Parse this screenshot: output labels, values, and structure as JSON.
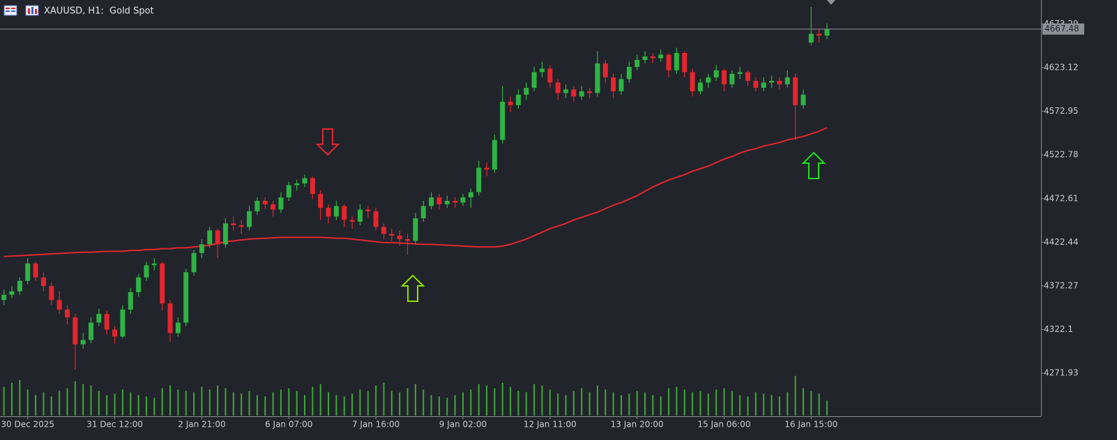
{
  "chart_data": {
    "type": "candlestick",
    "title": "XAUUSD, H1:  Gold Spot",
    "ylim": [
      4222.3,
      4700.9
    ],
    "yticks": [
      4673.29,
      4623.12,
      4572.95,
      4522.78,
      4472.61,
      4422.44,
      4372.27,
      4322.1,
      4271.93
    ],
    "last_price": 4667.48,
    "last_price_color": "#8c9099",
    "up_color": "#2fb344",
    "down_color": "#e3262f",
    "volume_color": "#3fa83a",
    "categories": [
      null,
      null,
      null,
      "30 Dec 2025",
      null,
      null,
      null,
      null,
      null,
      null,
      null,
      null,
      null,
      null,
      "31 Dec 12:00",
      null,
      null,
      null,
      null,
      null,
      null,
      null,
      null,
      null,
      null,
      "2 Jan 21:00",
      null,
      null,
      null,
      null,
      null,
      null,
      null,
      null,
      null,
      null,
      "6 Jan 07:00",
      null,
      null,
      null,
      null,
      null,
      null,
      null,
      null,
      null,
      null,
      "7 Jan 16:00",
      null,
      null,
      null,
      null,
      null,
      null,
      null,
      null,
      null,
      null,
      "9 Jan 02:00",
      null,
      null,
      null,
      null,
      null,
      null,
      null,
      null,
      null,
      null,
      "12 Jan 11:00",
      null,
      null,
      null,
      null,
      null,
      null,
      null,
      null,
      null,
      null,
      "13 Jan 20:00",
      null,
      null,
      null,
      null,
      null,
      null,
      null,
      null,
      null,
      null,
      "15 Jan 06:00",
      null,
      null,
      null,
      null,
      null,
      null,
      null,
      null,
      null,
      null,
      "16 Jan 15:00",
      null,
      null
    ],
    "ohlc": [
      [
        4356,
        4368,
        4350,
        4362
      ],
      [
        4362,
        4372,
        4358,
        4366
      ],
      [
        4366,
        4382,
        4362,
        4378
      ],
      [
        4378,
        4404,
        4374,
        4398
      ],
      [
        4398,
        4400,
        4378,
        4382
      ],
      [
        4382,
        4388,
        4366,
        4372
      ],
      [
        4372,
        4376,
        4350,
        4356
      ],
      [
        4356,
        4366,
        4340,
        4345
      ],
      [
        4345,
        4350,
        4328,
        4336
      ],
      [
        4336,
        4340,
        4276,
        4305
      ],
      [
        4305,
        4318,
        4300,
        4310
      ],
      [
        4310,
        4336,
        4306,
        4330
      ],
      [
        4330,
        4346,
        4326,
        4340
      ],
      [
        4340,
        4344,
        4316,
        4322
      ],
      [
        4322,
        4326,
        4306,
        4314
      ],
      [
        4314,
        4350,
        4312,
        4345
      ],
      [
        4345,
        4370,
        4340,
        4365
      ],
      [
        4365,
        4386,
        4360,
        4382
      ],
      [
        4382,
        4400,
        4378,
        4396
      ],
      [
        4396,
        4404,
        4390,
        4398
      ],
      [
        4398,
        4400,
        4344,
        4352
      ],
      [
        4352,
        4356,
        4308,
        4318
      ],
      [
        4318,
        4336,
        4314,
        4330
      ],
      [
        4330,
        4392,
        4326,
        4388
      ],
      [
        4388,
        4414,
        4384,
        4410
      ],
      [
        4410,
        4426,
        4404,
        4420
      ],
      [
        4420,
        4440,
        4416,
        4436
      ],
      [
        4436,
        4438,
        4404,
        4420
      ],
      [
        4420,
        4450,
        4416,
        4444
      ],
      [
        4444,
        4452,
        4436,
        4442
      ],
      [
        4442,
        4448,
        4432,
        4440
      ],
      [
        4440,
        4464,
        4436,
        4458
      ],
      [
        4458,
        4474,
        4454,
        4470
      ],
      [
        4470,
        4474,
        4460,
        4466
      ],
      [
        4466,
        4470,
        4452,
        4460
      ],
      [
        4460,
        4480,
        4456,
        4474
      ],
      [
        4474,
        4492,
        4470,
        4488
      ],
      [
        4488,
        4494,
        4482,
        4490
      ],
      [
        4490,
        4500,
        4486,
        4496
      ],
      [
        4496,
        4498,
        4472,
        4478
      ],
      [
        4478,
        4482,
        4448,
        4462
      ],
      [
        4462,
        4466,
        4444,
        4452
      ],
      [
        4452,
        4470,
        4448,
        4464
      ],
      [
        4464,
        4466,
        4440,
        4448
      ],
      [
        4448,
        4452,
        4438,
        4446
      ],
      [
        4446,
        4466,
        4442,
        4460
      ],
      [
        4460,
        4464,
        4450,
        4458
      ],
      [
        4458,
        4462,
        4436,
        4440
      ],
      [
        4440,
        4444,
        4426,
        4432
      ],
      [
        4432,
        4438,
        4424,
        4430
      ],
      [
        4430,
        4436,
        4418,
        4426
      ],
      [
        4426,
        4432,
        4408,
        4424
      ],
      [
        4424,
        4456,
        4420,
        4450
      ],
      [
        4450,
        4470,
        4446,
        4464
      ],
      [
        4464,
        4480,
        4460,
        4474
      ],
      [
        4474,
        4478,
        4460,
        4466
      ],
      [
        4466,
        4476,
        4462,
        4470
      ],
      [
        4470,
        4474,
        4462,
        4468
      ],
      [
        4468,
        4478,
        4464,
        4474
      ],
      [
        4474,
        4484,
        4462,
        4480
      ],
      [
        4480,
        4516,
        4476,
        4508
      ],
      [
        4508,
        4514,
        4498,
        4506
      ],
      [
        4506,
        4546,
        4502,
        4540
      ],
      [
        4540,
        4602,
        4536,
        4584
      ],
      [
        4584,
        4590,
        4572,
        4580
      ],
      [
        4580,
        4598,
        4576,
        4592
      ],
      [
        4592,
        4606,
        4586,
        4600
      ],
      [
        4600,
        4624,
        4596,
        4618
      ],
      [
        4618,
        4630,
        4612,
        4622
      ],
      [
        4622,
        4626,
        4600,
        4606
      ],
      [
        4606,
        4610,
        4586,
        4594
      ],
      [
        4594,
        4604,
        4588,
        4598
      ],
      [
        4598,
        4602,
        4584,
        4590
      ],
      [
        4590,
        4602,
        4586,
        4596
      ],
      [
        4596,
        4600,
        4588,
        4594
      ],
      [
        4594,
        4642,
        4590,
        4628
      ],
      [
        4628,
        4632,
        4606,
        4612
      ],
      [
        4612,
        4616,
        4588,
        4596
      ],
      [
        4596,
        4616,
        4592,
        4610
      ],
      [
        4610,
        4630,
        4606,
        4624
      ],
      [
        4624,
        4638,
        4620,
        4632
      ],
      [
        4632,
        4642,
        4628,
        4636
      ],
      [
        4636,
        4640,
        4628,
        4634
      ],
      [
        4634,
        4644,
        4630,
        4638
      ],
      [
        4638,
        4640,
        4612,
        4620
      ],
      [
        4620,
        4646,
        4616,
        4640
      ],
      [
        4640,
        4642,
        4612,
        4618
      ],
      [
        4618,
        4622,
        4590,
        4596
      ],
      [
        4596,
        4610,
        4592,
        4606
      ],
      [
        4606,
        4616,
        4600,
        4612
      ],
      [
        4612,
        4626,
        4608,
        4620
      ],
      [
        4620,
        4622,
        4596,
        4604
      ],
      [
        4604,
        4620,
        4600,
        4616
      ],
      [
        4616,
        4624,
        4610,
        4618
      ],
      [
        4618,
        4620,
        4602,
        4608
      ],
      [
        4608,
        4612,
        4596,
        4600
      ],
      [
        4600,
        4612,
        4596,
        4606
      ],
      [
        4606,
        4614,
        4600,
        4608
      ],
      [
        4608,
        4612,
        4598,
        4604
      ],
      [
        4604,
        4620,
        4600,
        4612
      ],
      [
        4612,
        4616,
        4540,
        4580
      ],
      [
        4580,
        4598,
        4576,
        4592
      ],
      [
        4652,
        4693,
        4649,
        4662
      ],
      [
        4662,
        4668,
        4652,
        4660
      ],
      [
        4660,
        4674,
        4656,
        4667.48
      ]
    ],
    "ma": {
      "color": "#e3262f",
      "values": [
        4406,
        4406.5,
        4407,
        4407.5,
        4408,
        4408.5,
        4409,
        4409.5,
        4410,
        4410.5,
        4411,
        4411,
        4411.5,
        4412,
        4412,
        4412,
        4413,
        4413,
        4414,
        4414,
        4415,
        4415,
        4416,
        4416,
        4417,
        4418,
        4419,
        4421,
        4423,
        4424,
        4425,
        4426,
        4426.5,
        4427,
        4427.5,
        4428,
        4428,
        4428,
        4428,
        4428,
        4428,
        4427.5,
        4427,
        4427,
        4426,
        4425,
        4424,
        4423,
        4422,
        4422,
        4421.5,
        4421,
        4420.5,
        4420,
        4420,
        4419.5,
        4419,
        4418.5,
        4418,
        4417.5,
        4417,
        4417,
        4417,
        4418,
        4420,
        4423,
        4426,
        4430,
        4434,
        4438,
        4441,
        4444,
        4448,
        4451,
        4454,
        4457,
        4461,
        4465,
        4468,
        4472,
        4476,
        4481,
        4486,
        4490,
        4494,
        4497,
        4500,
        4504,
        4507,
        4510,
        4514,
        4518,
        4521,
        4525,
        4528,
        4530,
        4533,
        4535,
        4537,
        4540,
        4542,
        4544,
        4547,
        4550,
        4554
      ]
    },
    "volume": [
      42,
      48,
      52,
      38,
      30,
      34,
      28,
      36,
      40,
      50,
      46,
      44,
      36,
      30,
      32,
      38,
      34,
      30,
      28,
      26,
      40,
      44,
      38,
      36,
      34,
      42,
      38,
      44,
      40,
      34,
      32,
      36,
      30,
      28,
      34,
      38,
      40,
      36,
      30,
      42,
      46,
      34,
      30,
      28,
      32,
      38,
      36,
      44,
      48,
      36,
      34,
      40,
      46,
      38,
      30,
      28,
      26,
      30,
      34,
      38,
      46,
      44,
      40,
      48,
      42,
      36,
      34,
      46,
      44,
      38,
      32,
      30,
      36,
      40,
      34,
      44,
      38,
      34,
      30,
      32,
      36,
      34,
      30,
      28,
      40,
      42,
      38,
      34,
      36,
      32,
      38,
      40,
      36,
      30,
      28,
      34,
      32,
      30,
      28,
      34,
      58,
      40,
      36,
      32,
      22
    ]
  }
}
